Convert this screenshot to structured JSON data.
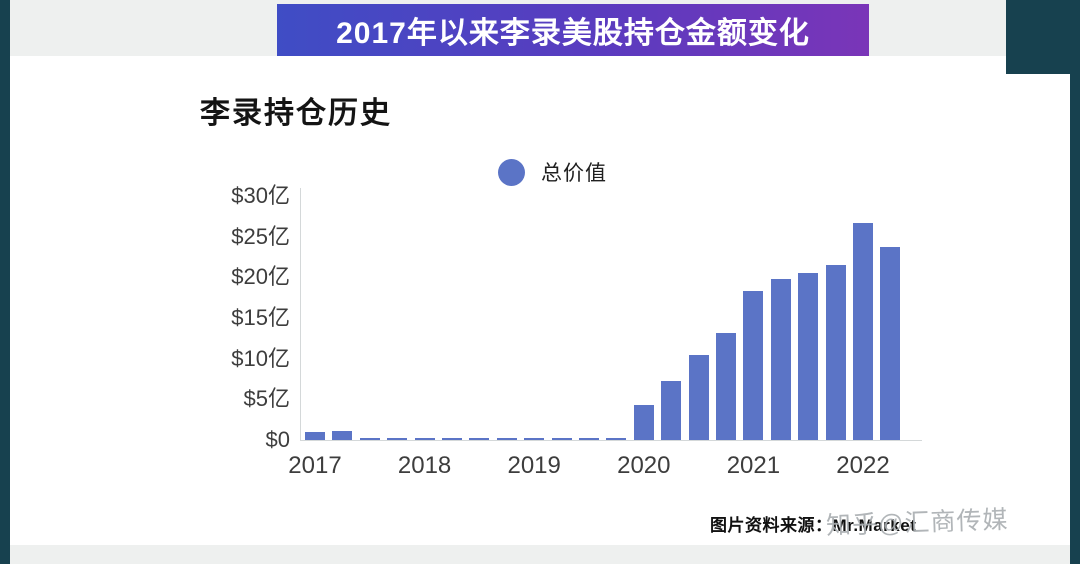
{
  "banner": {
    "title": "2017年以来李录美股持仓金额变化"
  },
  "chart": {
    "title": "李录持仓历史",
    "legend": {
      "label": "总价值",
      "color": "#5b74c6"
    }
  },
  "chart_data": {
    "type": "bar",
    "title": "李录持仓历史",
    "series_name": "总价值",
    "bar_color": "#5b74c6",
    "categories": [
      "2017Q1",
      "2017Q2",
      "2017Q3",
      "2017Q4",
      "2018Q1",
      "2018Q2",
      "2018Q3",
      "2018Q4",
      "2019Q1",
      "2019Q2",
      "2019Q3",
      "2019Q4",
      "2020Q1",
      "2020Q2",
      "2020Q3",
      "2020Q4",
      "2021Q1",
      "2021Q2",
      "2021Q3",
      "2021Q4",
      "2022Q1",
      "2022Q2"
    ],
    "values": [
      1.0,
      1.1,
      0.1,
      0.1,
      0.1,
      0.1,
      0.2,
      0.1,
      0.1,
      0.2,
      0.1,
      0.1,
      4.3,
      7.3,
      10.5,
      13.2,
      18.3,
      19.8,
      20.5,
      21.5,
      26.7,
      23.8
    ],
    "x_year_labels": [
      "2017",
      "2018",
      "2019",
      "2020",
      "2021",
      "2022"
    ],
    "y_ticks": [
      "$30亿",
      "$25亿",
      "$20亿",
      "$15亿",
      "$10亿",
      "$5亿",
      "$0"
    ],
    "y_tick_values": [
      30,
      25,
      20,
      15,
      10,
      5,
      0
    ],
    "ylim": [
      0,
      30
    ],
    "grid": false,
    "legend_position": "top"
  },
  "source": {
    "label": "图片资料来源：Mr.Market"
  },
  "watermark": {
    "text": "知乎@汇商传媒"
  }
}
